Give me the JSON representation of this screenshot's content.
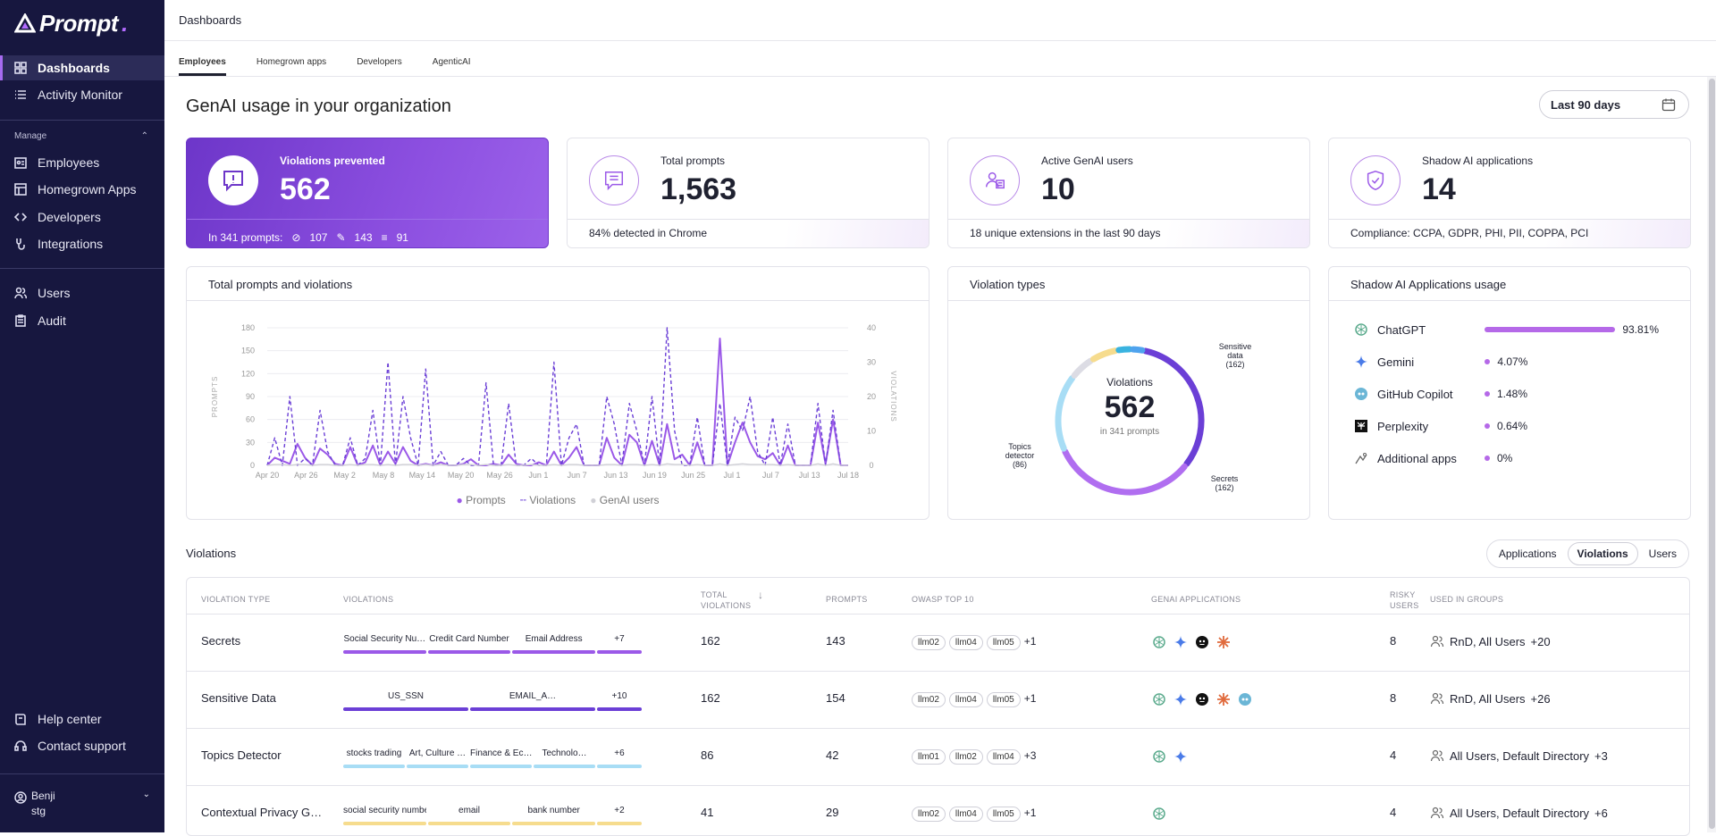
{
  "brand": {
    "name": "Prompt",
    "dot": "."
  },
  "sidebar": {
    "top": [
      {
        "label": "Dashboards",
        "icon": "grid-icon",
        "active": true
      },
      {
        "label": "Activity Monitor",
        "icon": "list-icon"
      }
    ],
    "manage_label": "Manage",
    "manage": [
      {
        "label": "Employees",
        "icon": "employees-icon"
      },
      {
        "label": "Homegrown Apps",
        "icon": "apps-icon"
      },
      {
        "label": "Developers",
        "icon": "code-icon"
      },
      {
        "label": "Integrations",
        "icon": "integrations-icon"
      }
    ],
    "admin": [
      {
        "label": "Users",
        "icon": "users-icon"
      },
      {
        "label": "Audit",
        "icon": "audit-icon"
      }
    ],
    "help": {
      "label": "Help center"
    },
    "support": {
      "label": "Contact support"
    },
    "user": {
      "name": "Benji",
      "env": "stg"
    }
  },
  "breadcrumb": "Dashboards",
  "tabs": [
    "Employees",
    "Homegrown apps",
    "Developers",
    "AgenticAI"
  ],
  "page": {
    "title": "GenAI usage in your organization",
    "range": "Last 90 days"
  },
  "stats": {
    "violations": {
      "label": "Violations prevented",
      "value": "562",
      "foot_prefix": "In 341 prompts:",
      "blocked": "107",
      "edited": "143",
      "redacted": "91"
    },
    "prompts": {
      "label": "Total prompts",
      "value": "1,563",
      "foot": "84% detected in Chrome"
    },
    "users": {
      "label": "Active GenAI users",
      "value": "10",
      "foot": "18 unique extensions in the last 90 days"
    },
    "shadow": {
      "label": "Shadow AI applications",
      "value": "14",
      "foot": "Compliance: CCPA, GDPR, PHI, PII, COPPA, PCI"
    }
  },
  "chart_card": {
    "title": "Total prompts and violations"
  },
  "chart_data": {
    "type": "line",
    "x_ticks": [
      "Apr 20",
      "Apr 26",
      "May 2",
      "May 8",
      "May 14",
      "May 20",
      "May 26",
      "Jun 1",
      "Jun 7",
      "Jun 13",
      "Jun 19",
      "Jun 25",
      "Jul 1",
      "Jul 7",
      "Jul 13",
      "Jul 18"
    ],
    "ylabel": "PROMPTS",
    "y2label": "VIOLATIONS",
    "yticks": [
      0,
      30,
      60,
      90,
      120,
      150,
      180
    ],
    "y2ticks": [
      0,
      10,
      20,
      30,
      40
    ],
    "ylim": [
      0,
      180
    ],
    "y2lim": [
      0,
      40
    ],
    "legend": [
      "Prompts",
      "Violations",
      "GenAI users"
    ],
    "series": [
      {
        "name": "Prompts",
        "axis": "left",
        "color": "#9b59e8",
        "values": [
          0,
          10,
          6,
          2,
          28,
          10,
          0,
          22,
          14,
          2,
          0,
          24,
          0,
          4,
          26,
          0,
          18,
          2,
          24,
          6,
          0,
          2,
          0,
          4,
          0,
          0,
          2,
          8,
          0,
          0,
          2,
          0,
          14,
          2,
          0,
          0,
          4,
          0,
          18,
          0,
          10,
          24,
          0,
          0,
          0,
          36,
          10,
          0,
          40,
          30,
          0,
          32,
          0,
          54,
          8,
          14,
          0,
          30,
          0,
          0,
          166,
          0,
          30,
          56,
          30,
          12,
          8,
          16,
          0,
          26,
          0,
          0,
          0,
          56,
          2,
          60,
          0,
          0
        ]
      },
      {
        "name": "Violations",
        "axis": "right",
        "color": "#6b3fd6",
        "values": [
          0,
          8,
          0,
          20,
          0,
          2,
          0,
          16,
          4,
          0,
          0,
          8,
          0,
          2,
          16,
          0,
          30,
          0,
          20,
          8,
          0,
          28,
          0,
          4,
          0,
          0,
          2,
          0,
          0,
          24,
          0,
          0,
          18,
          0,
          0,
          2,
          0,
          0,
          30,
          0,
          8,
          12,
          0,
          0,
          0,
          20,
          12,
          0,
          18,
          10,
          0,
          20,
          0,
          40,
          10,
          0,
          0,
          14,
          0,
          0,
          18,
          0,
          14,
          10,
          20,
          4,
          0,
          14,
          0,
          12,
          0,
          0,
          0,
          18,
          0,
          16,
          0,
          0
        ]
      },
      {
        "name": "GenAI users",
        "axis": "left",
        "color": "#d0d0d6",
        "values": [
          0,
          1,
          1,
          0,
          1,
          1,
          0,
          1,
          1,
          0,
          0,
          1,
          0,
          1,
          1,
          0,
          1,
          0,
          1,
          1,
          0,
          1,
          0,
          1,
          0,
          0,
          1,
          1,
          0,
          1,
          0,
          0,
          1,
          0,
          0,
          1,
          0,
          0,
          1,
          0,
          1,
          1,
          0,
          0,
          0,
          1,
          1,
          0,
          1,
          1,
          0,
          1,
          0,
          2,
          1,
          1,
          0,
          1,
          0,
          0,
          2,
          0,
          1,
          2,
          1,
          1,
          1,
          1,
          0,
          1,
          0,
          0,
          0,
          2,
          0,
          2,
          0,
          0
        ]
      }
    ]
  },
  "donut_card": {
    "title": "Violation types",
    "center_label": "Violations",
    "center_value": "562",
    "center_sub": "in 341 prompts",
    "labels": [
      {
        "text": "Sensitive data",
        "count": "(162)"
      },
      {
        "text": "Secrets",
        "count": "(162)"
      },
      {
        "text": "Topics detector",
        "count": "(86)"
      }
    ]
  },
  "donut_data": {
    "type": "pie",
    "segments": [
      {
        "name": "Sensitive data",
        "value": 162,
        "color": "#6b3fd6"
      },
      {
        "name": "Secrets",
        "value": 162,
        "color": "#b06ef0"
      },
      {
        "name": "Topics detector",
        "value": 86,
        "color": "#a8ddf5"
      },
      {
        "name": "grey",
        "value": 28,
        "color": "#dcdce4"
      },
      {
        "name": "yellow",
        "value": 30,
        "color": "#f6dc8e"
      },
      {
        "name": "cyan",
        "value": 16,
        "color": "#39b3e0"
      },
      {
        "name": "blue",
        "value": 14,
        "color": "#4fa3ee"
      }
    ]
  },
  "shadow_card": {
    "title": "Shadow AI Applications usage",
    "apps": [
      {
        "name": "ChatGPT",
        "pct": "93.81%",
        "frac": 0.9381,
        "icon": "openai-icon"
      },
      {
        "name": "Gemini",
        "pct": "4.07%",
        "frac": 0.0407,
        "icon": "gemini-icon"
      },
      {
        "name": "GitHub Copilot",
        "pct": "1.48%",
        "frac": 0.0148,
        "icon": "copilot-icon"
      },
      {
        "name": "Perplexity",
        "pct": "0.64%",
        "frac": 0.0064,
        "icon": "perplexity-icon"
      },
      {
        "name": "Additional apps",
        "pct": "0%",
        "frac": 0,
        "icon": "apps-generic-icon"
      }
    ]
  },
  "violations_section": {
    "title": "Violations",
    "toggle": [
      "Applications",
      "Violations",
      "Users"
    ],
    "active": "Violations",
    "columns": [
      "VIOLATION TYPE",
      "VIOLATIONS",
      "TOTAL VIOLATIONS",
      "PROMPTS",
      "OWASP TOP 10",
      "GENAI APPLICATIONS",
      "RISKY USERS",
      "USED IN GROUPS"
    ],
    "rows": [
      {
        "type": "Secrets",
        "tags": [
          "Social Security Nu…",
          "Credit Card Number",
          "Email Address",
          "+7"
        ],
        "total": "162",
        "prompts": "143",
        "owasp": [
          "llm02",
          "llm04",
          "llm05"
        ],
        "owasp_more": "+1",
        "risky": "8",
        "groups": "RnD, All Users",
        "groups_more": "+20",
        "bar_color": "#9b59e8"
      },
      {
        "type": "Sensitive Data",
        "tags": [
          "US_SSN",
          "EMAIL_A…",
          "+10"
        ],
        "total": "162",
        "prompts": "154",
        "owasp": [
          "llm02",
          "llm04",
          "llm05"
        ],
        "owasp_more": "+1",
        "risky": "8",
        "groups": "RnD, All Users",
        "groups_more": "+26",
        "bar_color": "#6b3fd6"
      },
      {
        "type": "Topics Detector",
        "tags": [
          "stocks trading",
          "Art, Culture …",
          "Finance & Ec…",
          "Technolo…",
          "+6"
        ],
        "total": "86",
        "prompts": "42",
        "owasp": [
          "llm01",
          "llm02",
          "llm04"
        ],
        "owasp_more": "+3",
        "risky": "4",
        "groups": "All Users, Default Directory",
        "groups_more": "+3",
        "bar_color": "#a8ddf5"
      },
      {
        "type": "Contextual Privacy G…",
        "tags": [
          "social security number",
          "email",
          "bank number",
          "+2"
        ],
        "total": "41",
        "prompts": "29",
        "owasp": [
          "llm02",
          "llm04",
          "llm05"
        ],
        "owasp_more": "+1",
        "risky": "4",
        "groups": "All Users, Default Directory",
        "groups_more": "+6",
        "bar_color": "#f6dc8e"
      }
    ]
  }
}
